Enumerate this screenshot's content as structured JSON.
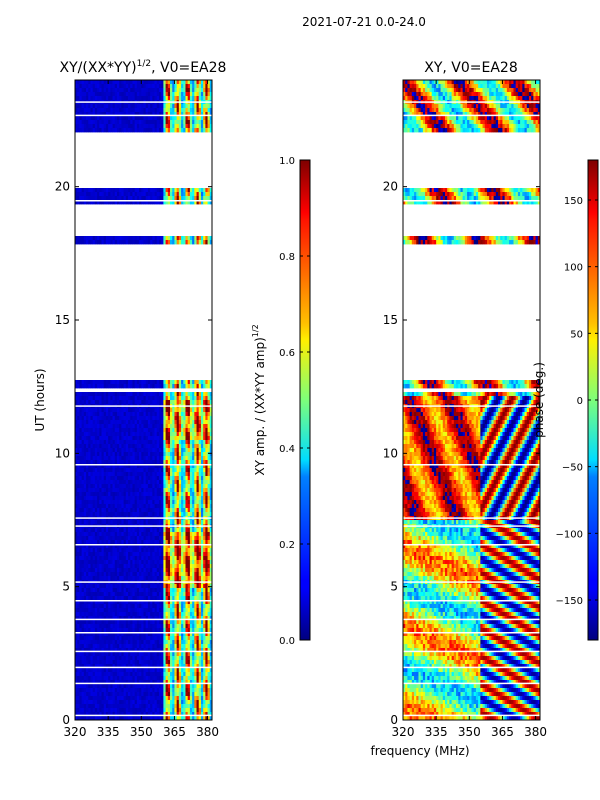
{
  "figure_title": "2021-07-21 0.0-24.0",
  "chart_data": [
    {
      "type": "heatmap",
      "title_main": "XY/(XX*YY)",
      "title_sup": "1/2",
      "title_tail": ", V0=EA28",
      "xlabel": "",
      "ylabel": "UT (hours)",
      "xlim": [
        320,
        382
      ],
      "ylim": [
        0,
        24
      ],
      "xticks": [
        320,
        335,
        350,
        365,
        380
      ],
      "yticks": [
        0,
        5,
        10,
        15,
        20
      ],
      "value_range": [
        0.0,
        1.0
      ],
      "background_value": 0.05,
      "active_band_mhz": [
        360,
        382
      ],
      "bright_channels_mhz": [
        362,
        366.5,
        371,
        375.5,
        379.5
      ],
      "data_gaps_hours": [
        [
          12.8,
          17.8
        ],
        [
          18.2,
          19.3
        ],
        [
          20.0,
          22.0
        ],
        [
          12.25,
          12.5
        ]
      ],
      "colorbar": {
        "label_main": "XY amp. / (XX*YY amp)",
        "label_sup": "1/2",
        "ticks": [
          "0.0",
          "0.2",
          "0.4",
          "0.6",
          "0.8",
          "1.0"
        ],
        "tick_values": [
          0.0,
          0.2,
          0.4,
          0.6,
          0.8,
          1.0
        ],
        "range": [
          0.0,
          1.0
        ]
      }
    },
    {
      "type": "heatmap",
      "title": "XY, V0=EA28",
      "xlabel": "frequency (MHz)",
      "ylabel": "",
      "xlim": [
        320,
        382
      ],
      "ylim": [
        0,
        24
      ],
      "xticks": [
        320,
        335,
        350,
        365,
        380
      ],
      "yticks": [
        0,
        5,
        10,
        15,
        20
      ],
      "value_range": [
        -180,
        180
      ],
      "data_gaps_hours": [
        [
          12.8,
          17.8
        ],
        [
          18.2,
          19.3
        ],
        [
          20.0,
          22.0
        ],
        [
          12.25,
          12.5
        ]
      ],
      "colorbar": {
        "label": "phase (deg.)",
        "ticks": [
          "−150",
          "−100",
          "−50",
          "0",
          "50",
          "100",
          "150"
        ],
        "tick_values": [
          -150,
          -100,
          -50,
          0,
          50,
          100,
          150
        ],
        "range": [
          -180,
          180
        ]
      }
    }
  ]
}
